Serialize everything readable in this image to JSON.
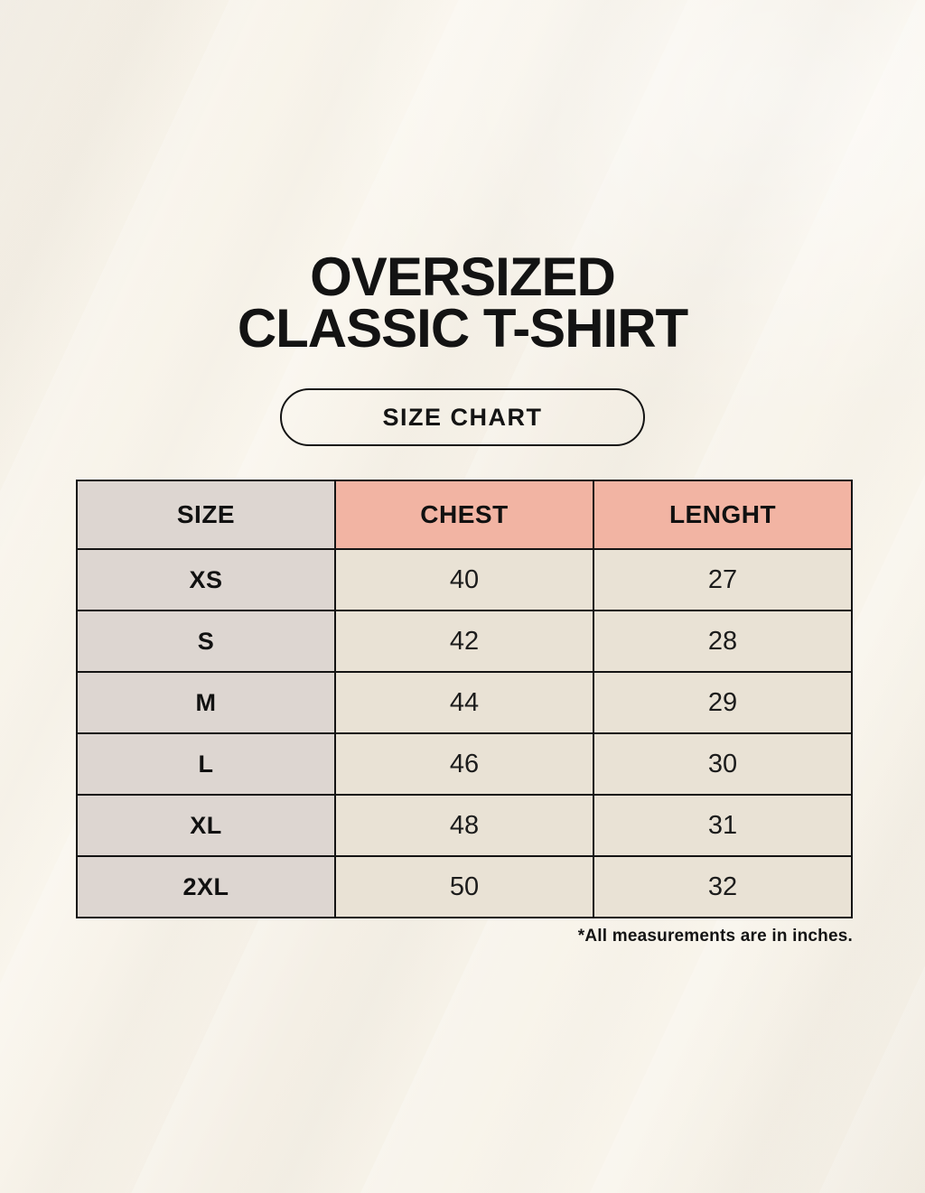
{
  "page": {
    "title_line1": "OVERSIZED",
    "title_line2": "CLASSIC T-SHIRT",
    "pill_label": "SIZE CHART",
    "footnote": "*All measurements are in inches."
  },
  "table": {
    "headers": [
      "SIZE",
      "CHEST",
      "LENGHT"
    ],
    "rows": [
      {
        "size": "XS",
        "chest": "40",
        "length": "27"
      },
      {
        "size": "S",
        "chest": "42",
        "length": "28"
      },
      {
        "size": "M",
        "chest": "44",
        "length": "29"
      },
      {
        "size": "L",
        "chest": "46",
        "length": "30"
      },
      {
        "size": "XL",
        "chest": "48",
        "length": "31"
      },
      {
        "size": "2XL",
        "chest": "50",
        "length": "32"
      }
    ]
  },
  "colors": {
    "background": "#f8f4ea",
    "size_column_bg": "#ddd6d1",
    "accent_pink": "#f2b4a3",
    "value_cell_bg": "#e9e2d5",
    "border": "#141414",
    "text": "#111111"
  },
  "chart_data": {
    "type": "table",
    "title": "OVERSIZED CLASSIC T-SHIRT — SIZE CHART",
    "columns": [
      "SIZE",
      "CHEST",
      "LENGHT"
    ],
    "rows": [
      [
        "XS",
        40,
        27
      ],
      [
        "S",
        42,
        28
      ],
      [
        "M",
        44,
        29
      ],
      [
        "L",
        46,
        30
      ],
      [
        "XL",
        48,
        31
      ],
      [
        "2XL",
        50,
        32
      ]
    ],
    "units": "inches",
    "notes": "Column header 'LENGHT' is spelled as shown in the image; all measurements are in inches."
  }
}
